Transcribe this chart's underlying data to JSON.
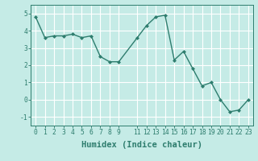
{
  "x": [
    0,
    1,
    2,
    3,
    4,
    5,
    6,
    7,
    8,
    9,
    11,
    12,
    13,
    14,
    15,
    16,
    17,
    18,
    19,
    20,
    21,
    22,
    23
  ],
  "y": [
    4.8,
    3.6,
    3.7,
    3.7,
    3.8,
    3.6,
    3.7,
    2.5,
    2.2,
    2.2,
    3.6,
    4.3,
    4.8,
    4.9,
    2.3,
    2.8,
    1.8,
    0.8,
    1.0,
    0.0,
    -0.7,
    -0.6,
    0.0
  ],
  "line_color": "#2e7d6e",
  "marker": "D",
  "marker_size": 2.0,
  "bg_color": "#c5ebe6",
  "grid_color": "#ffffff",
  "xlabel": "Humidex (Indice chaleur)",
  "ylim": [
    -1.5,
    5.5
  ],
  "xlim": [
    -0.5,
    23.5
  ],
  "yticks": [
    -1,
    0,
    1,
    2,
    3,
    4,
    5
  ],
  "xticks": [
    0,
    1,
    2,
    3,
    4,
    5,
    6,
    7,
    8,
    9,
    11,
    12,
    13,
    14,
    15,
    16,
    17,
    18,
    19,
    20,
    21,
    22,
    23
  ],
  "xtick_labels": [
    "0",
    "1",
    "2",
    "3",
    "4",
    "5",
    "6",
    "7",
    "8",
    "9",
    "11",
    "12",
    "13",
    "14",
    "15",
    "16",
    "17",
    "18",
    "19",
    "20",
    "21",
    "22",
    "23"
  ],
  "tick_color": "#2e7d6e",
  "label_fontsize": 7.5,
  "tick_fontsize": 5.8,
  "linewidth": 1.0
}
